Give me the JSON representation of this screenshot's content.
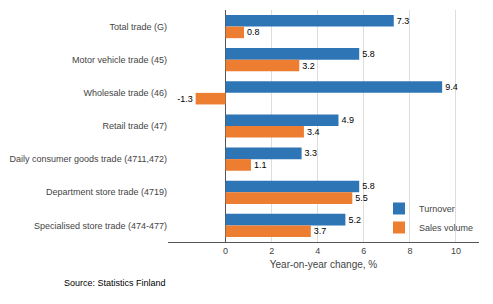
{
  "chart_data": {
    "type": "bar",
    "orientation": "horizontal",
    "categories": [
      "Total trade (G)",
      "Motor vehicle trade (45)",
      "Wholesale trade (46)",
      "Retail trade (47)",
      "Daily consumer goods trade (4711,472)",
      "Department store trade (4719)",
      "Specialised store trade (474-477)"
    ],
    "series": [
      {
        "name": "Turnover",
        "color": "#2E75B6",
        "values": [
          7.3,
          5.8,
          9.4,
          4.9,
          3.3,
          5.8,
          5.2
        ]
      },
      {
        "name": "Sales volume",
        "color": "#ED7D31",
        "values": [
          0.8,
          3.2,
          -1.3,
          3.4,
          1.1,
          5.5,
          3.7
        ]
      }
    ],
    "xlabel": "Year-on-year change, %",
    "xlim": [
      -2.5,
      11
    ],
    "xticks": [
      0,
      2,
      4,
      6,
      8,
      10
    ],
    "grid": true,
    "legend": "lower right",
    "data_labels": true,
    "annotations": [
      "Source: Statistics Finland"
    ]
  }
}
